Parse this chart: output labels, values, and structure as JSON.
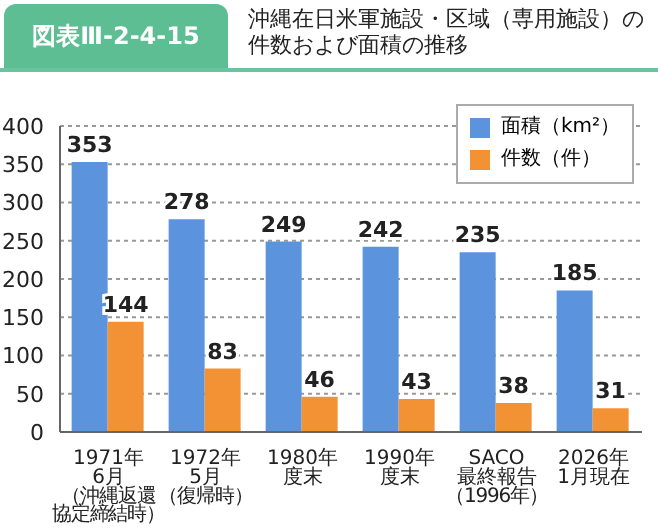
{
  "chart_data": {
    "type": "bar",
    "title": "図表Ⅲ-2-4-15",
    "subtitle": "沖縄在日米軍施設・区域（専用施設）の件数および面積の推移",
    "categories": [
      "1971年6月（沖縄返還協定締結時）",
      "1972年5月（復帰時）",
      "1980年度末",
      "1990年度末",
      "SACO最終報告（1996年）",
      "2026年1月現在"
    ],
    "series": [
      {
        "name": "面積（km²）",
        "color": "#5b93dd",
        "values": [
          353,
          278,
          249,
          242,
          235,
          185
        ]
      },
      {
        "name": "件数（件）",
        "color": "#f39235",
        "values": [
          144,
          83,
          46,
          43,
          38,
          31
        ]
      }
    ],
    "ylim": [
      0,
      400
    ],
    "yticks": [
      0,
      50,
      100,
      150,
      200,
      250,
      300,
      350,
      400
    ],
    "grid": "y",
    "legend": "top right",
    "data_labels": true
  }
}
